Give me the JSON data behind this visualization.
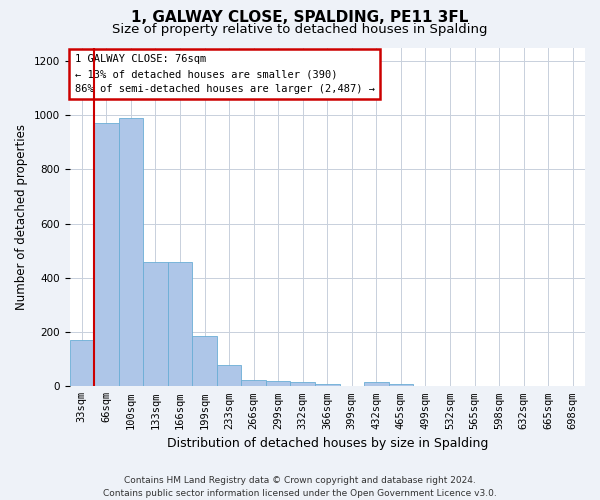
{
  "title": "1, GALWAY CLOSE, SPALDING, PE11 3FL",
  "subtitle": "Size of property relative to detached houses in Spalding",
  "xlabel": "Distribution of detached houses by size in Spalding",
  "ylabel": "Number of detached properties",
  "categories": [
    "33sqm",
    "66sqm",
    "100sqm",
    "133sqm",
    "166sqm",
    "199sqm",
    "233sqm",
    "266sqm",
    "299sqm",
    "332sqm",
    "366sqm",
    "399sqm",
    "432sqm",
    "465sqm",
    "499sqm",
    "532sqm",
    "565sqm",
    "598sqm",
    "632sqm",
    "665sqm",
    "698sqm"
  ],
  "values": [
    170,
    970,
    990,
    460,
    460,
    185,
    80,
    25,
    20,
    15,
    10,
    0,
    15,
    10,
    0,
    0,
    0,
    0,
    0,
    0,
    0
  ],
  "bar_color": "#aec6e8",
  "bar_edge_color": "#6baed6",
  "ylim": [
    0,
    1250
  ],
  "yticks": [
    0,
    200,
    400,
    600,
    800,
    1000,
    1200
  ],
  "vline_x_index": 1,
  "vline_color": "#cc0000",
  "annotation_box_text": "1 GALWAY CLOSE: 76sqm\n← 13% of detached houses are smaller (390)\n86% of semi-detached houses are larger (2,487) →",
  "footnote": "Contains HM Land Registry data © Crown copyright and database right 2024.\nContains public sector information licensed under the Open Government Licence v3.0.",
  "background_color": "#eef2f8",
  "plot_bg_color": "#ffffff",
  "grid_color": "#c8d0dc",
  "title_fontsize": 11,
  "subtitle_fontsize": 9.5,
  "xlabel_fontsize": 9,
  "ylabel_fontsize": 8.5,
  "tick_fontsize": 7.5,
  "footnote_fontsize": 6.5
}
